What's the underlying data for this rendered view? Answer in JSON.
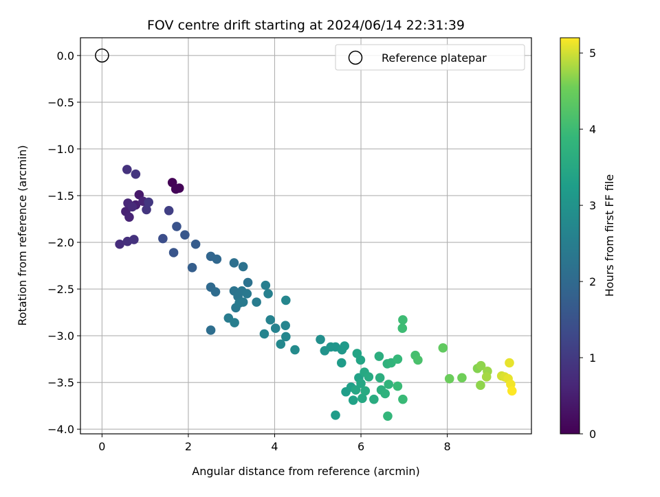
{
  "chart_data": {
    "type": "scatter",
    "title": "FOV centre drift starting at 2024/06/14 22:31:39",
    "xlabel": "Angular distance from reference (arcmin)",
    "ylabel": "Rotation from reference (arcmin)",
    "xlim": [
      -0.5,
      9.95
    ],
    "ylim": [
      -4.05,
      0.19
    ],
    "xticks": [
      0,
      2,
      4,
      6,
      8
    ],
    "yticks": [
      0.0,
      -0.5,
      -1.0,
      -1.5,
      -2.0,
      -2.5,
      -3.0,
      -3.5,
      -4.0
    ],
    "xtick_labels": [
      "0",
      "2",
      "4",
      "6",
      "8"
    ],
    "ytick_labels": [
      "0.0",
      "−0.5",
      "−1.0",
      "−1.5",
      "−2.0",
      "−2.5",
      "−3.0",
      "−3.5",
      "−4.0"
    ],
    "grid": true,
    "legend": {
      "placement": "upper right",
      "entries": [
        {
          "label": "Reference platepar",
          "marker": "open-circle"
        }
      ]
    },
    "reference_point": {
      "x": 0,
      "y": 0
    },
    "colorbar": {
      "label": "Hours from first FF file",
      "colormap": "viridis",
      "range": [
        0,
        5.2
      ],
      "ticks": [
        0,
        1,
        2,
        3,
        4,
        5
      ],
      "tick_labels": [
        "0",
        "1",
        "2",
        "3",
        "4",
        "5"
      ]
    },
    "points": [
      {
        "x": 1.63,
        "y": -1.36,
        "t": 0.03
      },
      {
        "x": 1.79,
        "y": -1.42,
        "t": 0.05
      },
      {
        "x": 1.71,
        "y": -1.43,
        "t": 0.08
      },
      {
        "x": 0.86,
        "y": -1.49,
        "t": 0.4
      },
      {
        "x": 0.78,
        "y": -1.6,
        "t": 0.5
      },
      {
        "x": 0.55,
        "y": -1.67,
        "t": 0.55
      },
      {
        "x": 0.95,
        "y": -1.56,
        "t": 0.6
      },
      {
        "x": 0.63,
        "y": -1.73,
        "t": 0.6
      },
      {
        "x": 0.6,
        "y": -1.58,
        "t": 0.65
      },
      {
        "x": 0.7,
        "y": -1.62,
        "t": 0.7
      },
      {
        "x": 0.41,
        "y": -2.02,
        "t": 0.75
      },
      {
        "x": 0.59,
        "y": -1.99,
        "t": 0.8
      },
      {
        "x": 0.74,
        "y": -1.97,
        "t": 0.85
      },
      {
        "x": 0.58,
        "y": -1.22,
        "t": 0.85
      },
      {
        "x": 0.78,
        "y": -1.27,
        "t": 0.9
      },
      {
        "x": 1.03,
        "y": -1.65,
        "t": 0.9
      },
      {
        "x": 1.08,
        "y": -1.57,
        "t": 0.95
      },
      {
        "x": 1.55,
        "y": -1.66,
        "t": 1.1
      },
      {
        "x": 1.41,
        "y": -1.96,
        "t": 1.4
      },
      {
        "x": 1.73,
        "y": -1.83,
        "t": 1.5
      },
      {
        "x": 1.66,
        "y": -2.11,
        "t": 1.55
      },
      {
        "x": 1.92,
        "y": -1.92,
        "t": 1.6
      },
      {
        "x": 2.17,
        "y": -2.02,
        "t": 1.7
      },
      {
        "x": 2.09,
        "y": -2.27,
        "t": 1.75
      },
      {
        "x": 2.52,
        "y": -2.15,
        "t": 1.9
      },
      {
        "x": 2.66,
        "y": -2.18,
        "t": 1.95
      },
      {
        "x": 2.52,
        "y": -2.48,
        "t": 2.0
      },
      {
        "x": 2.63,
        "y": -2.53,
        "t": 2.05
      },
      {
        "x": 2.52,
        "y": -2.94,
        "t": 2.1
      },
      {
        "x": 3.06,
        "y": -2.22,
        "t": 2.15
      },
      {
        "x": 3.27,
        "y": -2.26,
        "t": 2.2
      },
      {
        "x": 3.38,
        "y": -2.43,
        "t": 2.2
      },
      {
        "x": 3.06,
        "y": -2.52,
        "t": 2.25
      },
      {
        "x": 3.15,
        "y": -2.58,
        "t": 2.3
      },
      {
        "x": 3.24,
        "y": -2.52,
        "t": 2.3
      },
      {
        "x": 3.36,
        "y": -2.55,
        "t": 2.35
      },
      {
        "x": 3.1,
        "y": -2.7,
        "t": 2.35
      },
      {
        "x": 3.18,
        "y": -2.65,
        "t": 2.4
      },
      {
        "x": 3.27,
        "y": -2.64,
        "t": 2.4
      },
      {
        "x": 3.58,
        "y": -2.64,
        "t": 2.45
      },
      {
        "x": 2.93,
        "y": -2.81,
        "t": 2.45
      },
      {
        "x": 3.07,
        "y": -2.86,
        "t": 2.5
      },
      {
        "x": 3.79,
        "y": -2.46,
        "t": 2.5
      },
      {
        "x": 3.85,
        "y": -2.55,
        "t": 2.55
      },
      {
        "x": 3.9,
        "y": -2.83,
        "t": 2.6
      },
      {
        "x": 4.02,
        "y": -2.92,
        "t": 2.6
      },
      {
        "x": 3.76,
        "y": -2.98,
        "t": 2.65
      },
      {
        "x": 4.25,
        "y": -2.89,
        "t": 2.65
      },
      {
        "x": 4.26,
        "y": -2.62,
        "t": 2.7
      },
      {
        "x": 4.26,
        "y": -3.01,
        "t": 2.7
      },
      {
        "x": 4.14,
        "y": -3.09,
        "t": 2.75
      },
      {
        "x": 4.47,
        "y": -3.15,
        "t": 2.8
      },
      {
        "x": 5.06,
        "y": -3.04,
        "t": 2.9
      },
      {
        "x": 5.16,
        "y": -3.16,
        "t": 3.0
      },
      {
        "x": 5.3,
        "y": -3.12,
        "t": 3.05
      },
      {
        "x": 5.41,
        "y": -3.12,
        "t": 3.05
      },
      {
        "x": 5.56,
        "y": -3.15,
        "t": 3.1
      },
      {
        "x": 5.62,
        "y": -3.11,
        "t": 3.15
      },
      {
        "x": 5.55,
        "y": -3.29,
        "t": 3.2
      },
      {
        "x": 5.41,
        "y": -3.85,
        "t": 3.2
      },
      {
        "x": 5.65,
        "y": -3.6,
        "t": 3.25
      },
      {
        "x": 5.77,
        "y": -3.55,
        "t": 3.3
      },
      {
        "x": 5.82,
        "y": -3.69,
        "t": 3.35
      },
      {
        "x": 5.95,
        "y": -3.45,
        "t": 3.35
      },
      {
        "x": 5.91,
        "y": -3.19,
        "t": 3.4
      },
      {
        "x": 5.99,
        "y": -3.26,
        "t": 3.4
      },
      {
        "x": 5.88,
        "y": -3.58,
        "t": 3.45
      },
      {
        "x": 6.0,
        "y": -3.51,
        "t": 3.45
      },
      {
        "x": 6.03,
        "y": -3.67,
        "t": 3.5
      },
      {
        "x": 6.08,
        "y": -3.39,
        "t": 3.5
      },
      {
        "x": 6.1,
        "y": -3.59,
        "t": 3.55
      },
      {
        "x": 6.18,
        "y": -3.44,
        "t": 3.55
      },
      {
        "x": 6.3,
        "y": -3.68,
        "t": 3.6
      },
      {
        "x": 6.42,
        "y": -3.22,
        "t": 3.65
      },
      {
        "x": 6.44,
        "y": -3.45,
        "t": 3.65
      },
      {
        "x": 6.47,
        "y": -3.58,
        "t": 3.7
      },
      {
        "x": 6.56,
        "y": -3.62,
        "t": 3.75
      },
      {
        "x": 6.61,
        "y": -3.3,
        "t": 3.75
      },
      {
        "x": 6.7,
        "y": -3.29,
        "t": 3.8
      },
      {
        "x": 6.64,
        "y": -3.52,
        "t": 3.8
      },
      {
        "x": 6.62,
        "y": -3.86,
        "t": 3.85
      },
      {
        "x": 6.85,
        "y": -3.25,
        "t": 3.9
      },
      {
        "x": 6.85,
        "y": -3.54,
        "t": 3.95
      },
      {
        "x": 6.97,
        "y": -3.68,
        "t": 3.95
      },
      {
        "x": 6.97,
        "y": -2.83,
        "t": 4.0
      },
      {
        "x": 6.96,
        "y": -2.92,
        "t": 4.0
      },
      {
        "x": 7.26,
        "y": -3.21,
        "t": 4.1
      },
      {
        "x": 7.32,
        "y": -3.26,
        "t": 4.15
      },
      {
        "x": 7.9,
        "y": -3.13,
        "t": 4.4
      },
      {
        "x": 8.05,
        "y": -3.46,
        "t": 4.5
      },
      {
        "x": 8.34,
        "y": -3.45,
        "t": 4.55
      },
      {
        "x": 8.7,
        "y": -3.35,
        "t": 4.65
      },
      {
        "x": 8.78,
        "y": -3.32,
        "t": 4.7
      },
      {
        "x": 8.77,
        "y": -3.53,
        "t": 4.7
      },
      {
        "x": 8.93,
        "y": -3.38,
        "t": 4.75
      },
      {
        "x": 8.91,
        "y": -3.44,
        "t": 4.8
      },
      {
        "x": 9.26,
        "y": -3.43,
        "t": 5.0
      },
      {
        "x": 9.33,
        "y": -3.44,
        "t": 5.05
      },
      {
        "x": 9.41,
        "y": -3.46,
        "t": 5.1
      },
      {
        "x": 9.44,
        "y": -3.29,
        "t": 5.1
      },
      {
        "x": 9.47,
        "y": -3.52,
        "t": 5.15
      },
      {
        "x": 9.5,
        "y": -3.59,
        "t": 5.2
      }
    ]
  }
}
